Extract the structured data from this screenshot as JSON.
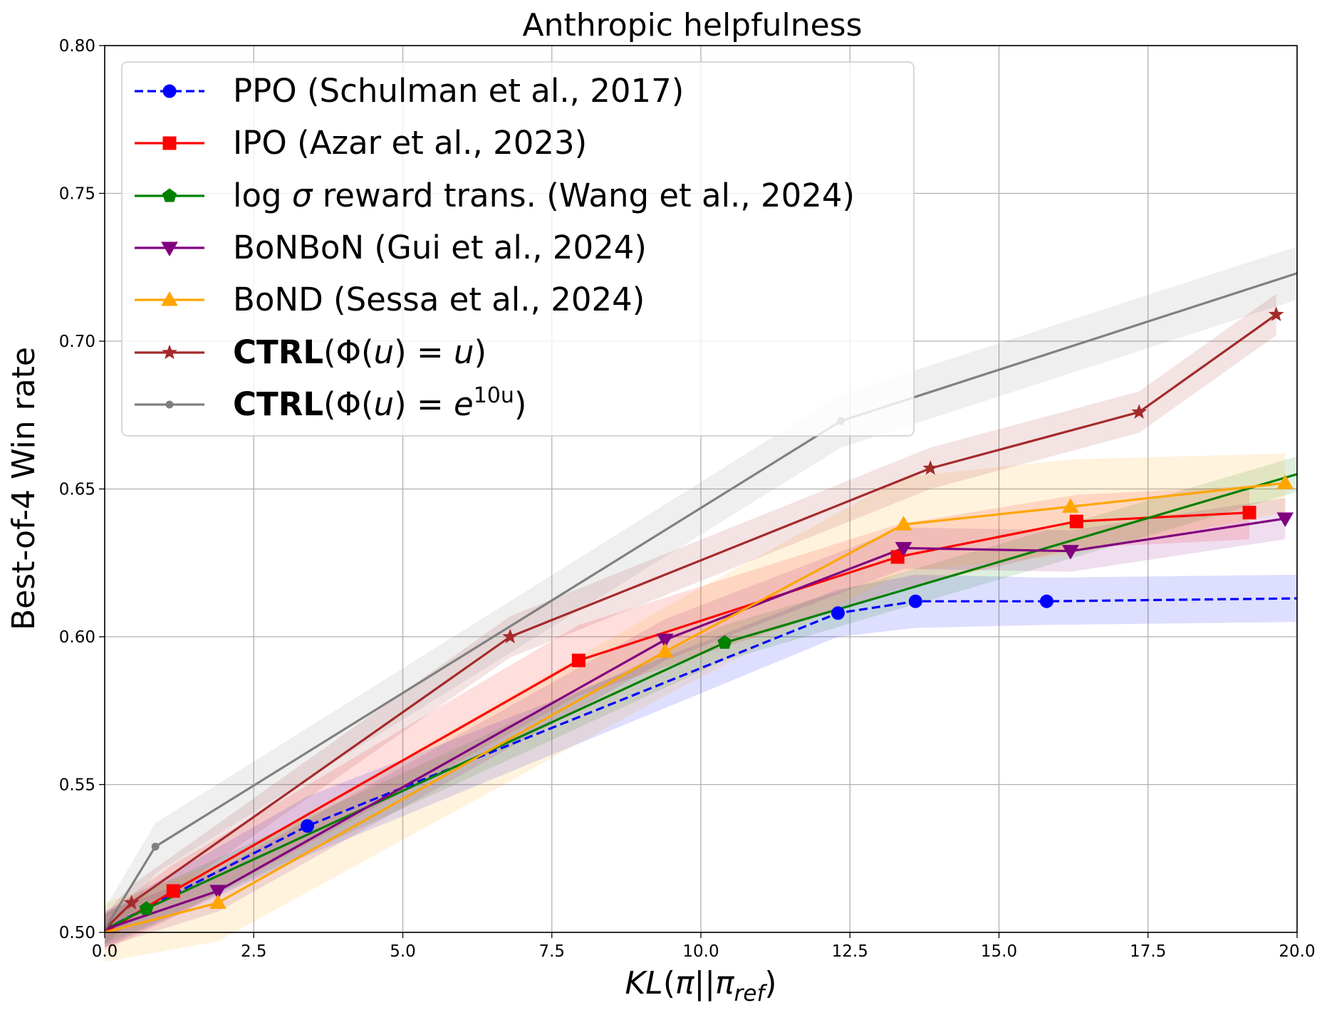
{
  "chart_data": {
    "type": "line",
    "title": "Anthropic helpfulness",
    "xlabel": "KL(π||π_ref)",
    "ylabel": "Best-of-4 Win rate",
    "xlim": [
      0,
      20
    ],
    "ylim": [
      0.5,
      0.8
    ],
    "xticks": [
      0,
      2.5,
      5,
      7.5,
      10,
      12.5,
      15,
      17.5,
      20
    ],
    "xtick_labels": [
      "0.0",
      "2.5",
      "5.0",
      "7.5",
      "10.0",
      "12.5",
      "15.0",
      "17.5",
      "20.0"
    ],
    "yticks": [
      0.5,
      0.55,
      0.6,
      0.65,
      0.7,
      0.75,
      0.8
    ],
    "ytick_labels": [
      "0.50",
      "0.55",
      "0.60",
      "0.65",
      "0.70",
      "0.75",
      "0.80"
    ],
    "grid": true,
    "legend_position": "top-left",
    "series": [
      {
        "name": "PPO (Schulman et al., 2017)",
        "color": "#0000ff",
        "marker": "circle",
        "dashed": true,
        "x": [
          0,
          3.4,
          12.3,
          13.6,
          15.8,
          20
        ],
        "y": [
          0.501,
          0.536,
          0.608,
          0.612,
          0.612,
          0.613
        ],
        "band": [
          [
            0.495,
            0.507
          ],
          [
            0.526,
            0.546
          ],
          [
            0.6,
            0.616
          ],
          [
            0.603,
            0.621
          ],
          [
            0.604,
            0.62
          ],
          [
            0.605,
            0.621
          ]
        ]
      },
      {
        "name": "IPO (Azar et al., 2023)",
        "color": "#ff0000",
        "marker": "square",
        "dashed": false,
        "x": [
          0,
          1.15,
          7.95,
          13.3,
          16.3,
          19.2
        ],
        "y": [
          0.5,
          0.514,
          0.592,
          0.627,
          0.639,
          0.642
        ],
        "band": [
          [
            0.494,
            0.506
          ],
          [
            0.505,
            0.523
          ],
          [
            0.58,
            0.604
          ],
          [
            0.616,
            0.638
          ],
          [
            0.63,
            0.648
          ],
          [
            0.633,
            0.651
          ]
        ]
      },
      {
        "name": "log σ reward trans. (Wang et al., 2024)",
        "color": "#008000",
        "marker": "pentagon",
        "dashed": false,
        "x": [
          0,
          0.7,
          10.4,
          20
        ],
        "y": [
          0.501,
          0.508,
          0.598,
          0.655
        ],
        "band": [
          [
            0.496,
            0.506
          ],
          [
            0.502,
            0.514
          ],
          [
            0.592,
            0.604
          ],
          [
            0.649,
            0.661
          ]
        ]
      },
      {
        "name": "BoNBoN (Gui et al., 2024)",
        "color": "#800080",
        "marker": "triangle-down",
        "dashed": false,
        "x": [
          0,
          1.9,
          9.4,
          13.4,
          16.2,
          19.8
        ],
        "y": [
          0.501,
          0.514,
          0.599,
          0.63,
          0.629,
          0.64
        ],
        "band": [
          [
            0.495,
            0.507
          ],
          [
            0.507,
            0.521
          ],
          [
            0.592,
            0.606
          ],
          [
            0.623,
            0.637
          ],
          [
            0.622,
            0.636
          ],
          [
            0.633,
            0.647
          ]
        ]
      },
      {
        "name": "BoND (Sessa et al., 2024)",
        "color": "#ffa500",
        "marker": "triangle-up",
        "dashed": false,
        "x": [
          0,
          1.9,
          9.4,
          13.4,
          16.2,
          19.8
        ],
        "y": [
          0.5,
          0.51,
          0.595,
          0.638,
          0.644,
          0.652
        ],
        "band": [
          [
            0.49,
            0.51
          ],
          [
            0.497,
            0.523
          ],
          [
            0.58,
            0.61
          ],
          [
            0.622,
            0.654
          ],
          [
            0.628,
            0.66
          ],
          [
            0.642,
            0.662
          ]
        ]
      },
      {
        "name": "CTRL(Φ(u) = u)",
        "color": "#a52a2a",
        "marker": "star",
        "dashed": false,
        "x": [
          0,
          0.45,
          6.8,
          13.85,
          17.35,
          19.65
        ],
        "y": [
          0.501,
          0.51,
          0.6,
          0.657,
          0.676,
          0.709
        ],
        "band": [
          [
            0.496,
            0.506
          ],
          [
            0.504,
            0.516
          ],
          [
            0.593,
            0.607
          ],
          [
            0.65,
            0.664
          ],
          [
            0.669,
            0.683
          ],
          [
            0.702,
            0.716
          ]
        ]
      },
      {
        "name": "CTRL(Φ(u) = e^{10u})",
        "color": "#808080",
        "marker": "dot",
        "dashed": false,
        "x": [
          0,
          0.85,
          12.35,
          20
        ],
        "y": [
          0.501,
          0.529,
          0.673,
          0.723
        ],
        "band": [
          [
            0.494,
            0.508
          ],
          [
            0.52,
            0.537
          ],
          [
            0.664,
            0.682
          ],
          [
            0.714,
            0.732
          ]
        ]
      }
    ]
  },
  "legend": {
    "entries": [
      {
        "plain": "PPO (Schulman et al., 2017)"
      },
      {
        "plain": "IPO (Azar et al., 2023)"
      },
      {
        "pre": "log ",
        "sym": "σ",
        "post": " reward trans. (Wang et al., 2024)"
      },
      {
        "plain": "BoNBoN (Gui et al., 2024)"
      },
      {
        "plain": "BoND (Sessa et al., 2024)"
      },
      {
        "bold": "CTRL",
        "a": "(Φ(",
        "u1": "u",
        "b": ") = ",
        "u2": "u",
        "c": ")"
      },
      {
        "bold": "CTRL",
        "a": "(Φ(",
        "u1": "u",
        "b": ") = ",
        "e": "e",
        "sup": "10u",
        "c": ")"
      }
    ]
  },
  "axis_title": {
    "x_kl": "KL",
    "x_open": "(",
    "x_pi": "π",
    "x_bars": "||",
    "x_pi2": "π",
    "x_sub": "ref",
    "x_close": ")"
  }
}
